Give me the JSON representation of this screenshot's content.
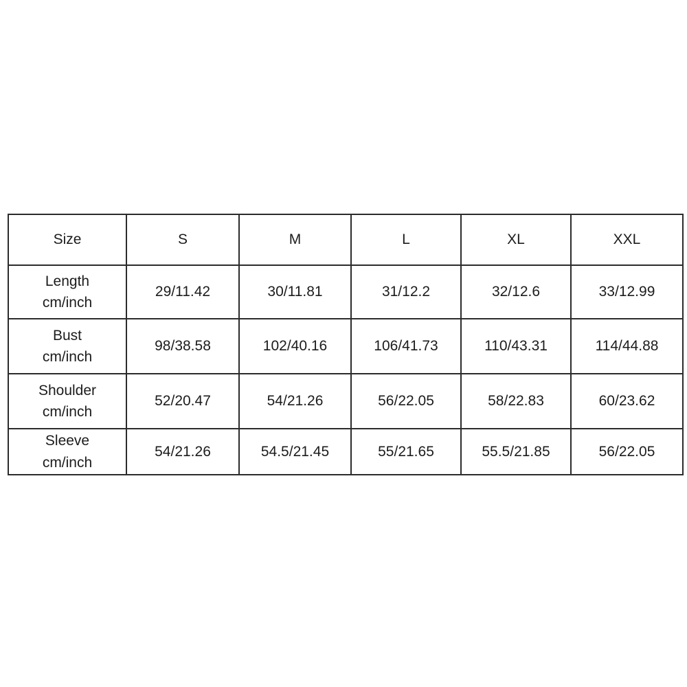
{
  "size_chart": {
    "header": {
      "size_col": "Size",
      "sizes": [
        "S",
        "M",
        "L",
        "XL",
        "XXL"
      ]
    },
    "unit_label": "cm/inch",
    "rows": [
      {
        "measure": "Length",
        "unit": "cm/inch",
        "values": [
          "29/11.42",
          "30/11.81",
          "31/12.2",
          "32/12.6",
          "33/12.99"
        ]
      },
      {
        "measure": "Bust",
        "unit": "cm/inch",
        "values": [
          "98/38.58",
          "102/40.16",
          "106/41.73",
          "110/43.31",
          "114/44.88"
        ]
      },
      {
        "measure": "Shoulder",
        "unit": "cm/inch",
        "values": [
          "52/20.47",
          "54/21.26",
          "56/22.05",
          "58/22.83",
          "60/23.62"
        ]
      },
      {
        "measure": "Sleeve",
        "unit": "cm/inch",
        "values": [
          "54/21.26",
          "54.5/21.45",
          "55/21.65",
          "55.5/21.85",
          "56/22.05"
        ]
      }
    ],
    "colors": {
      "border": "#2b2b2b",
      "text": "#1c1c1c",
      "background": "#ffffff"
    }
  }
}
